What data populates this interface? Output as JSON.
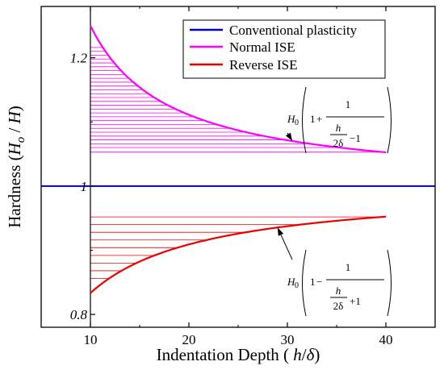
{
  "chart_data": {
    "type": "line",
    "xlabel_parts": {
      "pre": "Indentation Depth ( ",
      "h": "h",
      "slash": "/",
      "delta": "δ",
      "post": ")"
    },
    "ylabel_parts": {
      "pre": "Hardness (",
      "H": "H",
      "sub": "o",
      "mid": " / ",
      "H2": "H",
      "post": ")"
    },
    "xlim": [
      5,
      45
    ],
    "ylim": [
      0.78,
      1.28
    ],
    "x_ticks": [
      10,
      20,
      30,
      40
    ],
    "x_tick_labels": [
      "10",
      "20",
      "30",
      "40"
    ],
    "y_tick_labels": [
      {
        "value": 1.2,
        "label": "1.2"
      },
      {
        "value": 1.0,
        "label": "1"
      },
      {
        "value": 0.8,
        "label": "0.8"
      }
    ],
    "vertical_line_x": 10,
    "series": [
      {
        "name": "Conventional plasticity",
        "color": "#0000cc",
        "x_range": [
          5,
          45
        ],
        "value": 1.0
      },
      {
        "name": "Normal ISE",
        "color": "#ff00ff",
        "formula": "1 + 1/(x/2 - 1)",
        "x_range": [
          10,
          40
        ]
      },
      {
        "name": "Reverse ISE",
        "color": "#ee0000",
        "formula": "1 - 1/(x/2 + 1)",
        "x_range": [
          10,
          40
        ]
      }
    ],
    "hatch": {
      "normal": {
        "y_values": [
          1.053,
          1.06,
          1.066,
          1.072,
          1.078,
          1.084,
          1.09,
          1.096,
          1.102,
          1.108,
          1.114,
          1.12,
          1.126,
          1.132,
          1.138,
          1.144,
          1.15,
          1.156,
          1.162,
          1.168,
          1.174,
          1.18,
          1.186,
          1.192,
          1.198,
          1.204,
          1.21,
          1.216
        ]
      },
      "reverse": {
        "y_values": [
          0.952,
          0.94,
          0.928,
          0.916,
          0.904,
          0.892,
          0.88,
          0.868,
          0.856
        ]
      }
    },
    "annotations": [
      {
        "target": "normal",
        "prefix": "H",
        "prefix_sub": "0",
        "one": "1",
        "op": "+",
        "num": "1",
        "inner_num": "h",
        "inner_den": "2δ",
        "tail": "−1",
        "arrow_to_x": 30.5
      },
      {
        "target": "reverse",
        "prefix": "H",
        "prefix_sub": "0",
        "one": "1",
        "op": "−",
        "num": "1",
        "inner_num": "h",
        "inner_den": "2δ",
        "tail": "+1",
        "arrow_to_x": 29
      }
    ]
  }
}
